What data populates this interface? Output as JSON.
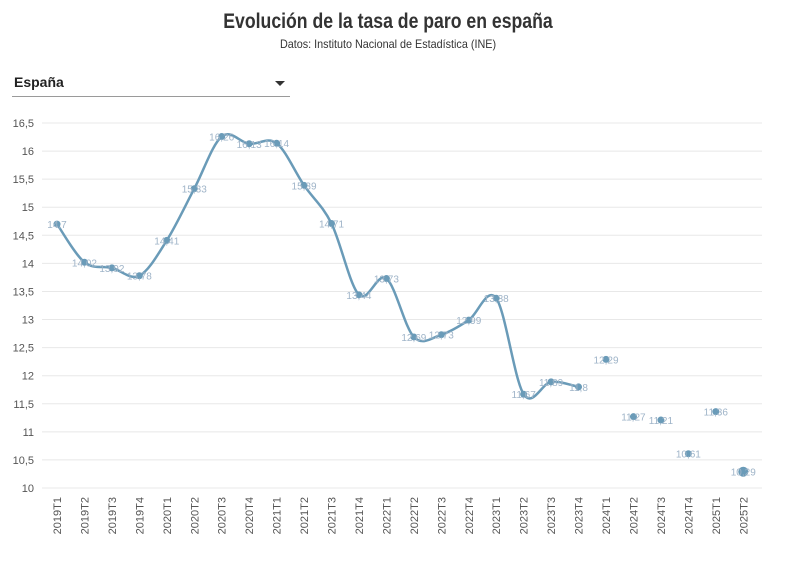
{
  "header": {
    "title": "Evolución de la tasa de paro en españa",
    "subtitle": "Datos: Instituto Nacional de Estadística (INE)"
  },
  "selector": {
    "value": "España",
    "icon": "chevron-down-icon"
  },
  "colors": {
    "line": "#6a9bb8",
    "point": "#6a9bb8",
    "label": "#9fb4c8",
    "grid": "#e8e8e8"
  },
  "chart_data": {
    "type": "line",
    "title": "Evolución de la tasa de paro en españa",
    "xlabel": "",
    "ylabel": "",
    "ylim": [
      10,
      16.5
    ],
    "yticks": [
      "10",
      "10,5",
      "11",
      "11,5",
      "12",
      "12,5",
      "13",
      "13,5",
      "14",
      "14,5",
      "15",
      "15,5",
      "16",
      "16,5"
    ],
    "grid": true,
    "categories": [
      "2019T1",
      "2019T2",
      "2019T3",
      "2019T4",
      "2020T1",
      "2020T2",
      "2020T3",
      "2020T4",
      "2021T1",
      "2021T2",
      "2021T3",
      "2021T4",
      "2022T1",
      "2022T2",
      "2022T3",
      "2022T4",
      "2023T1",
      "2023T2",
      "2023T3",
      "2023T4",
      "2024T1",
      "2024T2",
      "2024T3",
      "2024T4",
      "2025T1",
      "2025T2"
    ],
    "series": [
      {
        "values": [
          14.7,
          14.02,
          13.92,
          13.78,
          14.41,
          15.33,
          16.26,
          16.13,
          16.14,
          15.39,
          14.71,
          13.44,
          13.73,
          12.69,
          12.73,
          12.99,
          13.38,
          11.67,
          11.89,
          11.8,
          12.29,
          11.27,
          11.21,
          10.61,
          11.36,
          10.29
        ],
        "labels": [
          "14,7",
          "14,02",
          "13,92",
          "13,78",
          "14,41",
          "15,33",
          "16,26",
          "16,13",
          "16,14",
          "15,39",
          "14,71",
          "13,44",
          "13,73",
          "12,69",
          "12,73",
          "12,99",
          "13,38",
          "11,67",
          "11,89",
          "11,8",
          "12,29",
          "11,27",
          "11,21",
          "10,61",
          "11,36",
          "10,29"
        ],
        "line_through_index": 19
      }
    ]
  }
}
